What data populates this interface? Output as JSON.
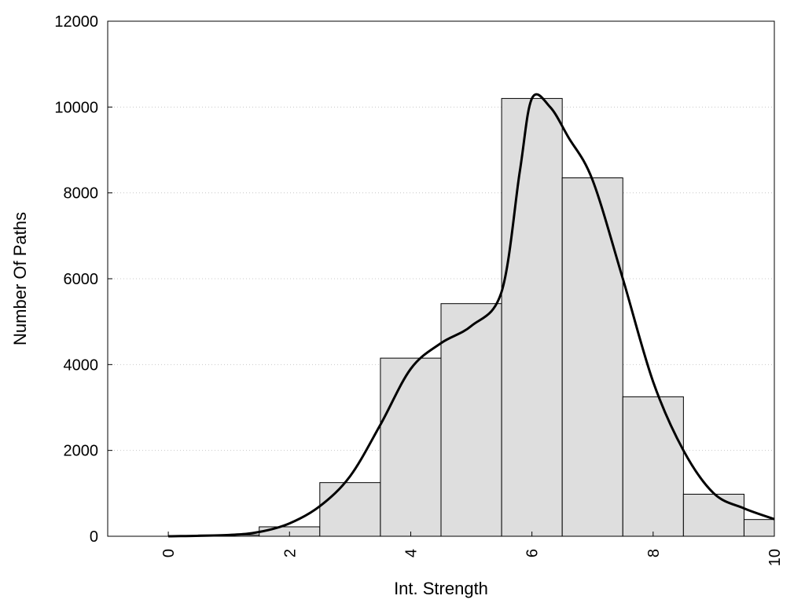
{
  "chart_data": {
    "type": "bar",
    "title": "",
    "xlabel": "Int. Strength",
    "ylabel": "Number Of Paths",
    "xlim": [
      -1,
      10
    ],
    "ylim": [
      0,
      12000
    ],
    "x_ticks": [
      0,
      2,
      4,
      6,
      8,
      10
    ],
    "y_ticks": [
      0,
      2000,
      4000,
      6000,
      8000,
      10000,
      12000
    ],
    "grid": "horizontal dotted",
    "bins": [
      {
        "x": 0,
        "value": 0
      },
      {
        "x": 1,
        "value": 30
      },
      {
        "x": 2,
        "value": 220
      },
      {
        "x": 3,
        "value": 1250
      },
      {
        "x": 4,
        "value": 4150
      },
      {
        "x": 5,
        "value": 5420
      },
      {
        "x": 6,
        "value": 10200
      },
      {
        "x": 7,
        "value": 8350
      },
      {
        "x": 8,
        "value": 3250
      },
      {
        "x": 9,
        "value": 980
      },
      {
        "x": 10,
        "value": 390
      }
    ],
    "density_curve": {
      "x": [
        0,
        1,
        1.5,
        2,
        2.5,
        3,
        3.5,
        4,
        4.5,
        5,
        5.5,
        5.8,
        6,
        6.3,
        6.6,
        7,
        7.5,
        8,
        8.5,
        9,
        9.5,
        10
      ],
      "y": [
        0,
        30,
        100,
        300,
        700,
        1400,
        2600,
        3900,
        4500,
        4900,
        5700,
        8500,
        10200,
        10000,
        9300,
        8300,
        6000,
        3600,
        2000,
        1000,
        650,
        400
      ]
    },
    "bar_fill": "#dedede",
    "bar_stroke": "#000000",
    "curve_color": "#000000"
  }
}
